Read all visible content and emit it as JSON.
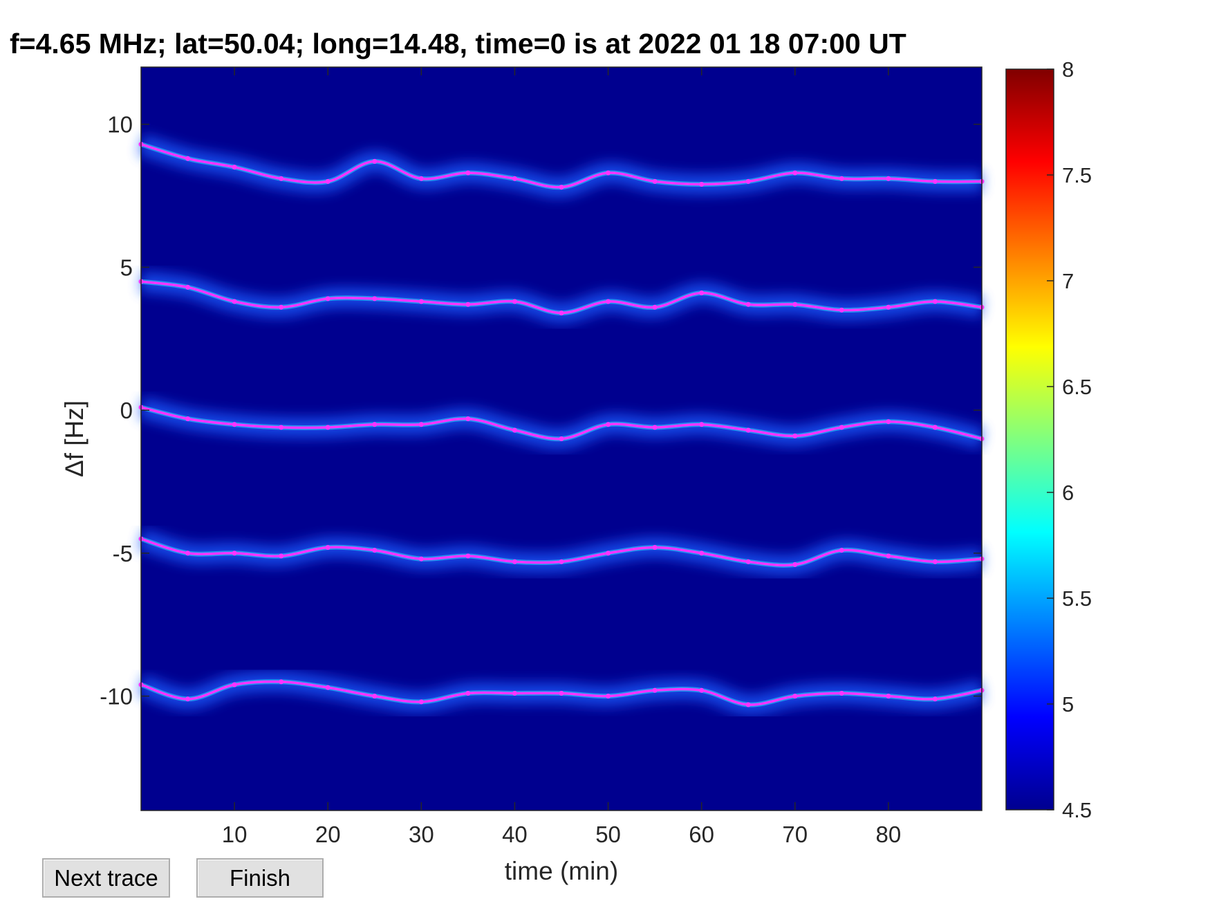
{
  "title": "f=4.65 MHz;  lat=50.04; long=14.48, time=0 is at 2022 01 18 07:00 UT",
  "buttons": {
    "next_trace": "Next trace",
    "finish": "Finish"
  },
  "chart_data": {
    "type": "heatmap",
    "title": "f=4.65 MHz;  lat=50.04; long=14.48, time=0 is at 2022 01 18 07:00 UT",
    "xlabel": "time (min)",
    "ylabel": "Δf [Hz]",
    "xlim": [
      0,
      90
    ],
    "ylim": [
      -14,
      12
    ],
    "xticks": [
      10,
      20,
      30,
      40,
      50,
      60,
      70,
      80
    ],
    "yticks": [
      10,
      5,
      0,
      -5,
      -10
    ],
    "background_color": "#00008f",
    "colorbar": {
      "colormap": "jet",
      "clim": [
        4.5,
        8
      ],
      "ticks": [
        8,
        7.5,
        7,
        6.5,
        6,
        5.5,
        5,
        4.5
      ]
    },
    "trace_color": "#ff33ff",
    "series": [
      {
        "x": [
          0,
          5,
          10,
          15,
          20,
          25,
          30,
          35,
          40,
          45,
          50,
          55,
          60,
          65,
          70,
          75,
          80,
          85,
          90
        ],
        "y": [
          9.3,
          8.8,
          8.5,
          8.1,
          8.0,
          8.7,
          8.1,
          8.3,
          8.1,
          7.8,
          8.3,
          8.0,
          7.9,
          8.0,
          8.3,
          8.1,
          8.1,
          8.0,
          8.0
        ]
      },
      {
        "x": [
          0,
          5,
          10,
          15,
          20,
          25,
          30,
          35,
          40,
          45,
          50,
          55,
          60,
          65,
          70,
          75,
          80,
          85,
          90
        ],
        "y": [
          4.5,
          4.3,
          3.8,
          3.6,
          3.9,
          3.9,
          3.8,
          3.7,
          3.8,
          3.4,
          3.8,
          3.6,
          4.1,
          3.7,
          3.7,
          3.5,
          3.6,
          3.8,
          3.6
        ]
      },
      {
        "x": [
          0,
          5,
          10,
          15,
          20,
          25,
          30,
          35,
          40,
          45,
          50,
          55,
          60,
          65,
          70,
          75,
          80,
          85,
          90
        ],
        "y": [
          0.1,
          -0.3,
          -0.5,
          -0.6,
          -0.6,
          -0.5,
          -0.5,
          -0.3,
          -0.7,
          -1.0,
          -0.5,
          -0.6,
          -0.5,
          -0.7,
          -0.9,
          -0.6,
          -0.4,
          -0.6,
          -1.0
        ]
      },
      {
        "x": [
          0,
          5,
          10,
          15,
          20,
          25,
          30,
          35,
          40,
          45,
          50,
          55,
          60,
          65,
          70,
          75,
          80,
          85,
          90
        ],
        "y": [
          -4.5,
          -5.0,
          -5.0,
          -5.1,
          -4.8,
          -4.9,
          -5.2,
          -5.1,
          -5.3,
          -5.3,
          -5.0,
          -4.8,
          -5.0,
          -5.3,
          -5.4,
          -4.9,
          -5.1,
          -5.3,
          -5.2
        ]
      },
      {
        "x": [
          0,
          5,
          10,
          15,
          20,
          25,
          30,
          35,
          40,
          45,
          50,
          55,
          60,
          65,
          70,
          75,
          80,
          85,
          90
        ],
        "y": [
          -9.6,
          -10.1,
          -9.6,
          -9.5,
          -9.7,
          -10.0,
          -10.2,
          -9.9,
          -9.9,
          -9.9,
          -10.0,
          -9.8,
          -9.8,
          -10.3,
          -10.0,
          -9.9,
          -10.0,
          -10.1,
          -9.8
        ]
      }
    ]
  }
}
